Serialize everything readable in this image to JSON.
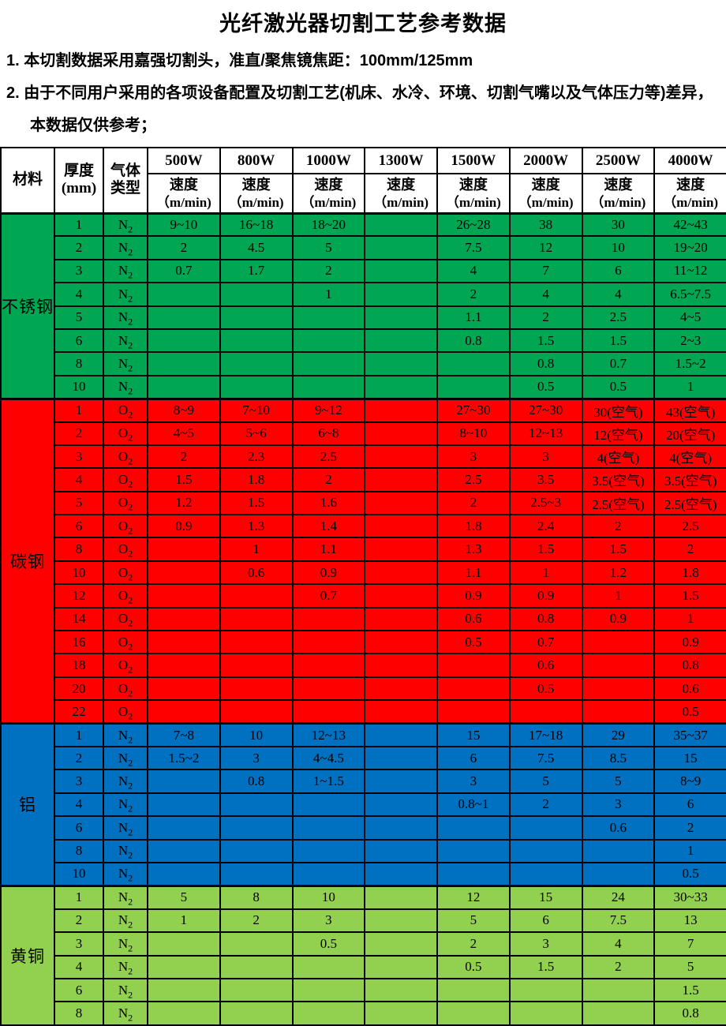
{
  "title": "光纤激光器切割工艺参考数据",
  "notes": [
    "1. 本切割数据采用嘉强切割头，准直/聚焦镜焦距：100mm/125mm",
    "2. 由于不同用户采用的各项设备配置及切割工艺(机床、水冷、环境、切割气嘴以及气体压力等)差异，本数据仅供参考；"
  ],
  "table": {
    "material_header": "材料",
    "thickness_header": "厚度",
    "thickness_unit": "(mm)",
    "gas_header_line1": "气体",
    "gas_header_line2": "类型",
    "speed_label": "速度",
    "speed_unit": "（m/min)",
    "power_columns": [
      "500W",
      "800W",
      "1000W",
      "1300W",
      "1500W",
      "2000W",
      "2500W",
      "4000W"
    ],
    "sections": [
      {
        "material": "不锈钢",
        "color": "#00A651",
        "rows": [
          {
            "thickness": "1",
            "gas": "N2",
            "speeds": [
              "9~10",
              "16~18",
              "18~20",
              "",
              "26~28",
              "38",
              "30",
              "42~43"
            ]
          },
          {
            "thickness": "2",
            "gas": "N2",
            "speeds": [
              "2",
              "4.5",
              "5",
              "",
              "7.5",
              "12",
              "10",
              "19~20"
            ]
          },
          {
            "thickness": "3",
            "gas": "N2",
            "speeds": [
              "0.7",
              "1.7",
              "2",
              "",
              "4",
              "7",
              "6",
              "11~12"
            ]
          },
          {
            "thickness": "4",
            "gas": "N2",
            "speeds": [
              "",
              "",
              "1",
              "",
              "2",
              "4",
              "4",
              "6.5~7.5"
            ]
          },
          {
            "thickness": "5",
            "gas": "N2",
            "speeds": [
              "",
              "",
              "",
              "",
              "1.1",
              "2",
              "2.5",
              "4~5"
            ]
          },
          {
            "thickness": "6",
            "gas": "N2",
            "speeds": [
              "",
              "",
              "",
              "",
              "0.8",
              "1.5",
              "1.5",
              "2~3"
            ]
          },
          {
            "thickness": "8",
            "gas": "N2",
            "speeds": [
              "",
              "",
              "",
              "",
              "",
              "0.8",
              "0.7",
              "1.5~2"
            ]
          },
          {
            "thickness": "10",
            "gas": "N2",
            "speeds": [
              "",
              "",
              "",
              "",
              "",
              "0.5",
              "0.5",
              "1"
            ]
          }
        ]
      },
      {
        "material": "碳钢",
        "color": "#FE0000",
        "rows": [
          {
            "thickness": "1",
            "gas": "O2",
            "speeds": [
              "8~9",
              "7~10",
              "9~12",
              "",
              "27~30",
              "27~30",
              "30(空气)",
              "43(空气)"
            ]
          },
          {
            "thickness": "2",
            "gas": "O2",
            "speeds": [
              "4~5",
              "5~6",
              "6~8",
              "",
              "8~10",
              "12~13",
              "12(空气)",
              "20(空气)"
            ]
          },
          {
            "thickness": "3",
            "gas": "O2",
            "speeds": [
              "2",
              "2.3",
              "2.5",
              "",
              "3",
              "3",
              "4(空气)",
              "4(空气)"
            ]
          },
          {
            "thickness": "4",
            "gas": "O2",
            "speeds": [
              "1.5",
              "1.8",
              "2",
              "",
              "2.5",
              "3.5",
              "3.5(空气)",
              "3.5(空气)"
            ]
          },
          {
            "thickness": "5",
            "gas": "O2",
            "speeds": [
              "1.2",
              "1.5",
              "1.6",
              "",
              "2",
              "2.5~3",
              "2.5(空气)",
              "2.5(空气)"
            ]
          },
          {
            "thickness": "6",
            "gas": "O2",
            "speeds": [
              "0.9",
              "1.3",
              "1.4",
              "",
              "1.8",
              "2.4",
              "2",
              "2.5"
            ]
          },
          {
            "thickness": "8",
            "gas": "O2",
            "speeds": [
              "",
              "1",
              "1.1",
              "",
              "1.3",
              "1.5",
              "1.5",
              "2"
            ]
          },
          {
            "thickness": "10",
            "gas": "O2",
            "speeds": [
              "",
              "0.6",
              "0.9",
              "",
              "1.1",
              "1",
              "1.2",
              "1.8"
            ]
          },
          {
            "thickness": "12",
            "gas": "O2",
            "speeds": [
              "",
              "",
              "0.7",
              "",
              "0.9",
              "0.9",
              "1",
              "1.5"
            ]
          },
          {
            "thickness": "14",
            "gas": "O2",
            "speeds": [
              "",
              "",
              "",
              "",
              "0.6",
              "0.8",
              "0.9",
              "1"
            ]
          },
          {
            "thickness": "16",
            "gas": "O2",
            "speeds": [
              "",
              "",
              "",
              "",
              "0.5",
              "0.7",
              "",
              "0.9"
            ]
          },
          {
            "thickness": "18",
            "gas": "O2",
            "speeds": [
              "",
              "",
              "",
              "",
              "",
              "0.6",
              "",
              "0.8"
            ]
          },
          {
            "thickness": "20",
            "gas": "O2",
            "speeds": [
              "",
              "",
              "",
              "",
              "",
              "0.5",
              "",
              "0.6"
            ]
          },
          {
            "thickness": "22",
            "gas": "O2",
            "speeds": [
              "",
              "",
              "",
              "",
              "",
              "",
              "",
              "0.5"
            ]
          }
        ]
      },
      {
        "material": "铝",
        "color": "#0070C0",
        "rows": [
          {
            "thickness": "1",
            "gas": "N2",
            "speeds": [
              "7~8",
              "10",
              "12~13",
              "",
              "15",
              "17~18",
              "29",
              "35~37"
            ]
          },
          {
            "thickness": "2",
            "gas": "N2",
            "speeds": [
              "1.5~2",
              "3",
              "4~4.5",
              "",
              "6",
              "7.5",
              "8.5",
              "15"
            ]
          },
          {
            "thickness": "3",
            "gas": "N2",
            "speeds": [
              "",
              "0.8",
              "1~1.5",
              "",
              "3",
              "5",
              "5",
              "8~9"
            ]
          },
          {
            "thickness": "4",
            "gas": "N2",
            "speeds": [
              "",
              "",
              "",
              "",
              "0.8~1",
              "2",
              "3",
              "6"
            ]
          },
          {
            "thickness": "6",
            "gas": "N2",
            "speeds": [
              "",
              "",
              "",
              "",
              "",
              "",
              "0.6",
              "2"
            ]
          },
          {
            "thickness": "8",
            "gas": "N2",
            "speeds": [
              "",
              "",
              "",
              "",
              "",
              "",
              "",
              "1"
            ]
          },
          {
            "thickness": "10",
            "gas": "N2",
            "speeds": [
              "",
              "",
              "",
              "",
              "",
              "",
              "",
              "0.5"
            ]
          }
        ]
      },
      {
        "material": "黄铜",
        "color": "#92D050",
        "rows": [
          {
            "thickness": "1",
            "gas": "N2",
            "speeds": [
              "5",
              "8",
              "10",
              "",
              "12",
              "15",
              "24",
              "30~33"
            ]
          },
          {
            "thickness": "2",
            "gas": "N2",
            "speeds": [
              "1",
              "2",
              "3",
              "",
              "5",
              "6",
              "7.5",
              "13"
            ]
          },
          {
            "thickness": "3",
            "gas": "N2",
            "speeds": [
              "",
              "",
              "0.5",
              "",
              "2",
              "3",
              "4",
              "7"
            ]
          },
          {
            "thickness": "4",
            "gas": "N2",
            "speeds": [
              "",
              "",
              "",
              "",
              "0.5",
              "1.5",
              "2",
              "5"
            ]
          },
          {
            "thickness": "6",
            "gas": "N2",
            "speeds": [
              "",
              "",
              "",
              "",
              "",
              "",
              "",
              "1.5"
            ]
          },
          {
            "thickness": "8",
            "gas": "N2",
            "speeds": [
              "",
              "",
              "",
              "",
              "",
              "",
              "",
              "0.8"
            ]
          }
        ]
      }
    ]
  }
}
